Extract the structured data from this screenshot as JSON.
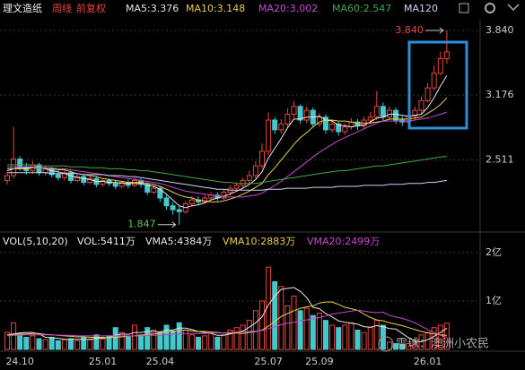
{
  "chart_data": {
    "type": "candlestick",
    "title": "理文造纸",
    "period": "周线",
    "adjust": "前复权",
    "up_color": "#e8453c",
    "down_color": "#45c8cc",
    "grid": true,
    "categories": [
      null,
      null,
      "24.10",
      null,
      null,
      null,
      null,
      null,
      null,
      null,
      null,
      null,
      null,
      null,
      null,
      "25.01",
      null,
      null,
      null,
      null,
      null,
      null,
      null,
      null,
      "25.04",
      null,
      null,
      null,
      null,
      null,
      null,
      null,
      null,
      null,
      null,
      null,
      null,
      null,
      null,
      null,
      null,
      "25.07",
      null,
      null,
      null,
      null,
      null,
      null,
      null,
      "25.09",
      null,
      null,
      null,
      null,
      null,
      null,
      null,
      null,
      null,
      null,
      null,
      null,
      null,
      null,
      null,
      null,
      "26.01",
      null,
      null,
      null
    ],
    "open": [
      2.3,
      2.35,
      2.52,
      2.44,
      2.4,
      2.46,
      2.38,
      2.42,
      2.36,
      2.33,
      2.38,
      2.3,
      2.34,
      2.28,
      2.32,
      2.26,
      2.3,
      2.27,
      2.24,
      2.28,
      2.25,
      2.3,
      2.26,
      2.18,
      2.22,
      2.12,
      2.04,
      2.0,
      1.98,
      2.06,
      2.1,
      2.08,
      2.12,
      2.15,
      2.12,
      2.18,
      2.22,
      2.25,
      2.3,
      2.35,
      2.45,
      2.6,
      2.92,
      2.82,
      2.88,
      2.98,
      3.06,
      2.92,
      3.02,
      2.88,
      2.95,
      2.82,
      2.88,
      2.8,
      2.85,
      2.9,
      2.86,
      2.92,
      2.95,
      3.06,
      2.95,
      3.02,
      2.92,
      2.9,
      2.96,
      3.02,
      3.12,
      3.25,
      3.4,
      3.55
    ],
    "high": [
      2.38,
      2.85,
      2.55,
      2.48,
      2.5,
      2.48,
      2.45,
      2.44,
      2.4,
      2.41,
      2.4,
      2.36,
      2.36,
      2.35,
      2.34,
      2.32,
      2.32,
      2.3,
      2.3,
      2.31,
      2.33,
      2.32,
      2.28,
      2.25,
      2.24,
      2.15,
      2.08,
      2.05,
      2.09,
      2.14,
      2.14,
      2.15,
      2.18,
      2.18,
      2.21,
      2.25,
      2.28,
      2.33,
      2.4,
      2.5,
      2.68,
      3.0,
      2.95,
      2.93,
      3.04,
      3.12,
      3.08,
      3.06,
      3.05,
      2.99,
      2.98,
      2.92,
      2.9,
      2.89,
      2.94,
      2.93,
      2.96,
      3.0,
      3.22,
      3.1,
      3.06,
      3.05,
      2.96,
      3.0,
      3.06,
      3.16,
      3.3,
      3.48,
      3.62,
      3.84
    ],
    "low": [
      2.26,
      2.32,
      2.4,
      2.36,
      2.37,
      2.35,
      2.35,
      2.33,
      2.3,
      2.3,
      2.27,
      2.28,
      2.25,
      2.26,
      2.23,
      2.24,
      2.24,
      2.21,
      2.22,
      2.22,
      2.23,
      2.23,
      2.15,
      2.16,
      2.08,
      2.0,
      1.95,
      1.847,
      1.96,
      2.03,
      2.05,
      2.06,
      2.1,
      2.09,
      2.1,
      2.15,
      2.19,
      2.22,
      2.27,
      2.32,
      2.42,
      2.56,
      2.78,
      2.78,
      2.84,
      2.94,
      2.88,
      2.89,
      2.85,
      2.85,
      2.78,
      2.79,
      2.76,
      2.77,
      2.82,
      2.82,
      2.83,
      2.88,
      2.92,
      2.91,
      2.92,
      2.88,
      2.86,
      2.87,
      2.92,
      2.98,
      3.1,
      3.22,
      3.38,
      3.5
    ],
    "close": [
      2.35,
      2.52,
      2.44,
      2.4,
      2.46,
      2.38,
      2.42,
      2.36,
      2.33,
      2.38,
      2.3,
      2.34,
      2.28,
      2.32,
      2.26,
      2.3,
      2.27,
      2.24,
      2.28,
      2.25,
      2.3,
      2.26,
      2.18,
      2.22,
      2.12,
      2.04,
      2.0,
      1.98,
      2.06,
      2.1,
      2.08,
      2.12,
      2.15,
      2.12,
      2.18,
      2.22,
      2.25,
      2.3,
      2.35,
      2.45,
      2.6,
      2.92,
      2.82,
      2.88,
      2.98,
      3.06,
      2.92,
      3.02,
      2.88,
      2.95,
      2.82,
      2.88,
      2.8,
      2.85,
      2.9,
      2.86,
      2.92,
      2.95,
      3.06,
      2.95,
      3.02,
      2.92,
      2.9,
      2.96,
      3.02,
      3.12,
      3.25,
      3.4,
      3.55,
      3.62
    ],
    "ylim": [
      1.78,
      3.95
    ],
    "yticks": [
      {
        "value": 3.84,
        "label": "3.840"
      },
      3.176,
      2.511
    ],
    "annotations": {
      "high": {
        "text": "3.840",
        "color": "#e8453c"
      },
      "low": {
        "text": "1.847",
        "color": "#5cc85c"
      }
    },
    "ma_lines": [
      {
        "name": "MA5:3.376",
        "color": "#e6e6e6",
        "values": [
          2.4,
          2.42,
          2.43,
          2.43,
          2.44,
          2.44,
          2.42,
          2.4,
          2.39,
          2.37,
          2.35,
          2.33,
          2.32,
          2.31,
          2.29,
          2.29,
          2.28,
          2.28,
          2.27,
          2.27,
          2.27,
          2.27,
          2.25,
          2.24,
          2.21,
          2.16,
          2.1,
          2.04,
          2.02,
          2.04,
          2.05,
          2.07,
          2.1,
          2.12,
          2.14,
          2.16,
          2.19,
          2.22,
          2.26,
          2.31,
          2.39,
          2.53,
          2.63,
          2.73,
          2.84,
          2.93,
          2.93,
          2.95,
          2.95,
          2.96,
          2.92,
          2.91,
          2.87,
          2.86,
          2.85,
          2.86,
          2.87,
          2.9,
          2.94,
          2.95,
          2.98,
          2.98,
          2.97,
          2.96,
          2.97,
          2.98,
          3.05,
          3.15,
          3.27,
          3.376
        ]
      },
      {
        "name": "MA10:3.148",
        "color": "#e8cf4a",
        "values": [
          2.42,
          2.42,
          2.42,
          2.42,
          2.43,
          2.43,
          2.43,
          2.42,
          2.41,
          2.41,
          2.39,
          2.37,
          2.36,
          2.35,
          2.34,
          2.32,
          2.31,
          2.3,
          2.29,
          2.28,
          2.28,
          2.28,
          2.27,
          2.26,
          2.24,
          2.21,
          2.18,
          2.15,
          2.13,
          2.12,
          2.1,
          2.09,
          2.08,
          2.08,
          2.09,
          2.11,
          2.13,
          2.16,
          2.19,
          2.23,
          2.27,
          2.36,
          2.43,
          2.51,
          2.59,
          2.67,
          2.74,
          2.79,
          2.85,
          2.9,
          2.92,
          2.92,
          2.91,
          2.91,
          2.9,
          2.89,
          2.89,
          2.89,
          2.9,
          2.91,
          2.93,
          2.93,
          2.93,
          2.93,
          2.94,
          2.95,
          2.99,
          3.03,
          3.08,
          3.148
        ]
      },
      {
        "name": "MA20:3.002",
        "color": "#c64ad0",
        "values": [
          2.44,
          2.44,
          2.44,
          2.44,
          2.44,
          2.43,
          2.43,
          2.43,
          2.42,
          2.42,
          2.41,
          2.4,
          2.39,
          2.38,
          2.37,
          2.36,
          2.35,
          2.34,
          2.33,
          2.32,
          2.31,
          2.3,
          2.29,
          2.28,
          2.27,
          2.25,
          2.23,
          2.21,
          2.19,
          2.18,
          2.17,
          2.16,
          2.15,
          2.14,
          2.13,
          2.13,
          2.13,
          2.13,
          2.14,
          2.15,
          2.17,
          2.21,
          2.25,
          2.29,
          2.34,
          2.39,
          2.44,
          2.49,
          2.54,
          2.59,
          2.63,
          2.67,
          2.71,
          2.74,
          2.77,
          2.8,
          2.83,
          2.86,
          2.89,
          2.91,
          2.91,
          2.91,
          2.91,
          2.91,
          2.92,
          2.93,
          2.94,
          2.96,
          2.98,
          3.002
        ]
      },
      {
        "name": "MA60:2.547",
        "color": "#3fa84a",
        "values": [
          2.46,
          2.46,
          2.46,
          2.46,
          2.46,
          2.45,
          2.45,
          2.45,
          2.45,
          2.45,
          2.44,
          2.44,
          2.44,
          2.43,
          2.43,
          2.43,
          2.42,
          2.42,
          2.42,
          2.41,
          2.41,
          2.4,
          2.4,
          2.39,
          2.38,
          2.37,
          2.36,
          2.35,
          2.34,
          2.33,
          2.32,
          2.31,
          2.3,
          2.29,
          2.28,
          2.28,
          2.27,
          2.27,
          2.27,
          2.27,
          2.28,
          2.29,
          2.3,
          2.31,
          2.32,
          2.33,
          2.34,
          2.35,
          2.36,
          2.37,
          2.38,
          2.39,
          2.4,
          2.4,
          2.41,
          2.42,
          2.43,
          2.44,
          2.45,
          2.45,
          2.46,
          2.47,
          2.48,
          2.49,
          2.5,
          2.51,
          2.52,
          2.53,
          2.54,
          2.547
        ]
      },
      {
        "name": "MA120",
        "color": "#c8d6f2",
        "values": [
          2.38,
          2.38,
          2.38,
          2.38,
          2.38,
          2.38,
          2.38,
          2.37,
          2.37,
          2.37,
          2.37,
          2.37,
          2.36,
          2.36,
          2.36,
          2.36,
          2.35,
          2.35,
          2.35,
          2.34,
          2.34,
          2.33,
          2.32,
          2.31,
          2.3,
          2.29,
          2.28,
          2.27,
          2.26,
          2.25,
          2.24,
          2.23,
          2.22,
          2.21,
          2.21,
          2.2,
          2.2,
          2.2,
          2.2,
          2.2,
          2.2,
          2.21,
          2.21,
          2.21,
          2.22,
          2.22,
          2.22,
          2.22,
          2.23,
          2.23,
          2.23,
          2.23,
          2.24,
          2.24,
          2.24,
          2.24,
          2.25,
          2.25,
          2.25,
          2.25,
          2.26,
          2.26,
          2.26,
          2.27,
          2.27,
          2.27,
          2.28,
          2.28,
          2.29,
          2.3
        ]
      }
    ],
    "volume": {
      "title": "VOL(5,10,20)",
      "label": "VOL:5411万",
      "ylim": [
        0,
        2.37
      ],
      "yticks": [
        {
          "value": 2,
          "label": "2亿"
        },
        {
          "value": 1,
          "label": "1亿"
        }
      ],
      "values": [
        0.35,
        0.55,
        0.3,
        0.25,
        0.28,
        0.22,
        0.2,
        0.25,
        0.18,
        0.2,
        0.22,
        0.18,
        0.25,
        0.2,
        0.3,
        0.22,
        0.28,
        0.45,
        0.35,
        0.25,
        0.5,
        0.3,
        0.45,
        0.4,
        0.35,
        0.5,
        0.38,
        0.55,
        0.4,
        0.3,
        0.25,
        0.28,
        0.35,
        0.25,
        0.3,
        0.4,
        0.45,
        0.5,
        0.6,
        0.8,
        1.0,
        1.7,
        1.4,
        1.3,
        0.9,
        1.1,
        0.8,
        0.85,
        0.7,
        0.75,
        0.6,
        0.5,
        0.45,
        0.5,
        0.55,
        0.4,
        0.35,
        0.45,
        0.6,
        0.5,
        0.15,
        0.12,
        0.1,
        0.12,
        0.15,
        0.3,
        0.35,
        0.45,
        0.5,
        0.5411
      ],
      "ma_lines": [
        {
          "name": "VMA5:4384万",
          "color": "#e6e6e6",
          "values": [
            0.3,
            0.32,
            0.34,
            0.35,
            0.35,
            0.32,
            0.25,
            0.24,
            0.23,
            0.21,
            0.21,
            0.21,
            0.21,
            0.21,
            0.23,
            0.23,
            0.25,
            0.29,
            0.32,
            0.31,
            0.35,
            0.35,
            0.37,
            0.37,
            0.36,
            0.4,
            0.4,
            0.44,
            0.44,
            0.41,
            0.37,
            0.35,
            0.33,
            0.29,
            0.29,
            0.32,
            0.35,
            0.38,
            0.46,
            0.55,
            0.67,
            0.92,
            1.1,
            1.24,
            1.26,
            1.28,
            1.2,
            1.07,
            0.87,
            0.84,
            0.74,
            0.67,
            0.59,
            0.56,
            0.54,
            0.52,
            0.47,
            0.46,
            0.49,
            0.47,
            0.43,
            0.42,
            0.33,
            0.24,
            0.17,
            0.16,
            0.2,
            0.27,
            0.35,
            0.4384
          ]
        },
        {
          "name": "VMA10:2883万",
          "color": "#e8cf4a",
          "values": [
            0.3,
            0.31,
            0.32,
            0.32,
            0.33,
            0.33,
            0.31,
            0.3,
            0.29,
            0.28,
            0.27,
            0.26,
            0.26,
            0.25,
            0.25,
            0.25,
            0.24,
            0.25,
            0.26,
            0.27,
            0.28,
            0.29,
            0.31,
            0.32,
            0.33,
            0.36,
            0.37,
            0.39,
            0.4,
            0.38,
            0.37,
            0.37,
            0.36,
            0.35,
            0.34,
            0.33,
            0.34,
            0.33,
            0.35,
            0.37,
            0.4,
            0.48,
            0.58,
            0.68,
            0.74,
            0.8,
            0.85,
            0.88,
            0.9,
            0.96,
            0.98,
            0.98,
            0.93,
            0.87,
            0.84,
            0.81,
            0.73,
            0.66,
            0.61,
            0.59,
            0.55,
            0.52,
            0.49,
            0.45,
            0.41,
            0.37,
            0.34,
            0.32,
            0.3,
            0.2883
          ]
        },
        {
          "name": "VMA20:2499万",
          "color": "#c64ad0",
          "values": [
            0.28,
            0.29,
            0.29,
            0.3,
            0.3,
            0.3,
            0.3,
            0.3,
            0.29,
            0.29,
            0.29,
            0.28,
            0.28,
            0.28,
            0.28,
            0.28,
            0.28,
            0.28,
            0.28,
            0.28,
            0.28,
            0.28,
            0.29,
            0.29,
            0.29,
            0.3,
            0.31,
            0.32,
            0.33,
            0.33,
            0.33,
            0.33,
            0.34,
            0.34,
            0.34,
            0.35,
            0.36,
            0.36,
            0.37,
            0.38,
            0.39,
            0.43,
            0.47,
            0.51,
            0.54,
            0.56,
            0.59,
            0.61,
            0.63,
            0.66,
            0.69,
            0.73,
            0.75,
            0.77,
            0.79,
            0.81,
            0.79,
            0.77,
            0.76,
            0.77,
            0.7,
            0.67,
            0.64,
            0.6,
            0.55,
            0.48,
            0.41,
            0.35,
            0.29,
            0.2499
          ]
        }
      ]
    },
    "watermark": "雪球：澳洲小农民"
  }
}
